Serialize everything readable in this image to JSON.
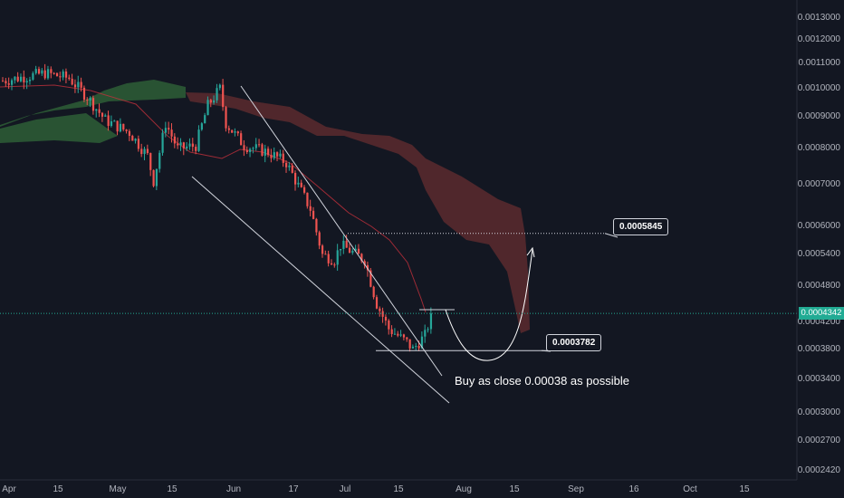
{
  "chart_data": {
    "type": "candlestick",
    "y_scale": "log",
    "ylim": [
      0.00024,
      0.00135
    ],
    "y_ticks": [
      "0.0013000",
      "0.0012000",
      "0.0011000",
      "0.0010000",
      "0.0009000",
      "0.0008000",
      "0.0007000",
      "0.0006000",
      "0.0005400",
      "0.0004800",
      "0.0004200",
      "0.0003800",
      "0.0003400",
      "0.0003000",
      "0.0002700",
      "0.0002420"
    ],
    "x_ticks": [
      "Apr",
      "15",
      "May",
      "15",
      "Jun",
      "17",
      "Jul",
      "15",
      "Aug",
      "15",
      "Sep",
      "16",
      "Oct",
      "15"
    ],
    "current_price": "0.0004342",
    "annotations": {
      "target_label": "0.0005845",
      "support_label": "0.0003782",
      "note": "Buy as close 0.00038 as possible"
    },
    "colors": {
      "up": "#26a69a",
      "down": "#ef5350",
      "cloud_bull": "#2e5e36",
      "cloud_bear": "#5c2a2e",
      "baseline": "#c2313c",
      "current_line": "#22ab94"
    }
  }
}
